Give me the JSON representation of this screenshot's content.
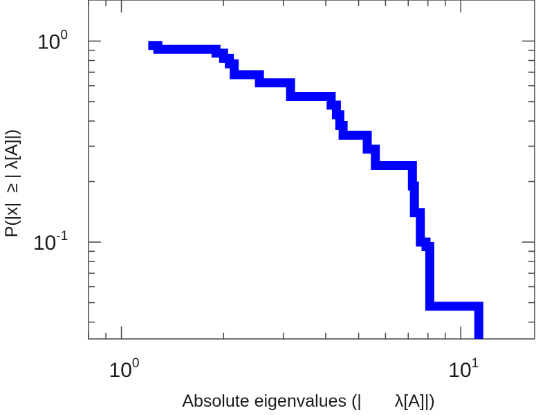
{
  "chart_data": {
    "type": "line",
    "title": "",
    "xlabel": {
      "before": "Absolute eigenvalues (|",
      "after": "λ[A]|)"
    },
    "ylabel": {
      "before": "P(|x|",
      "after": "≥ | λ[A]|)"
    },
    "xscale": "log",
    "yscale": "log",
    "xlim": [
      0.8,
      16.5
    ],
    "ylim": [
      0.033,
      1.6
    ],
    "grid": false,
    "x_ticks": [
      {
        "base": "10",
        "exp": "0",
        "value": 1
      },
      {
        "base": "10",
        "exp": "1",
        "value": 10
      }
    ],
    "y_ticks": [
      {
        "base": "10",
        "exp": "-1",
        "value": 0.1
      },
      {
        "base": "10",
        "exp": "0",
        "value": 1
      }
    ],
    "series": [
      {
        "color": "#0000ff",
        "step": true,
        "x": [
          1.2,
          1.28,
          1.9,
          2.0,
          2.08,
          2.15,
          2.55,
          3.15,
          4.15,
          4.3,
          4.4,
          4.5,
          5.3,
          5.6,
          7.2,
          7.3,
          7.6,
          7.9,
          8.1,
          11.3
        ],
        "y": [
          0.95,
          0.91,
          0.87,
          0.82,
          0.77,
          0.68,
          0.62,
          0.53,
          0.48,
          0.43,
          0.38,
          0.34,
          0.29,
          0.24,
          0.19,
          0.14,
          0.1,
          0.095,
          0.048,
          0.033
        ]
      }
    ]
  }
}
